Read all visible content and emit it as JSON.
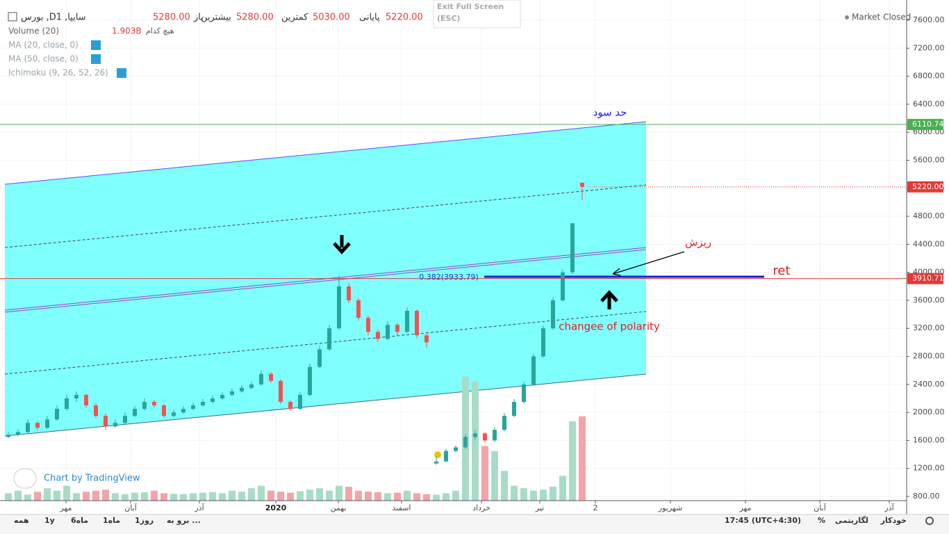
{
  "legend": {
    "symbol": "بورس ,Dسایپا, 1",
    "open_label": "باز",
    "open": "5280.00",
    "high_label": "بیشترین",
    "high": "5280.00",
    "low_label": "کمترین",
    "low": "5030.00",
    "close_label": "پایانی",
    "close": "5220.00",
    "volume_name": "Volume (20)",
    "volume_value": "1.903B",
    "volume_ma": "هیچ کدام",
    "indicators": [
      "MA (20, close, 0)",
      "MA (50, close, 0)",
      "Ichimoku (9, 26, 52, 26)"
    ]
  },
  "ui": {
    "exit_fullscreen": "Exit Full Screen",
    "exit_key": "(ESC)",
    "market_status": "Market Closed",
    "attribution": "Chart by TradingView",
    "toolbar_left": [
      "همه",
      "1y",
      "6ماه",
      "1ماه",
      "1روز",
      "برو به ..."
    ],
    "toolbar_right": [
      "17:45 (UTC+4:30)",
      "%",
      "لگاریتمی",
      "خودکار"
    ]
  },
  "chart_data": {
    "type": "candlestick",
    "up_color": "#26a69a",
    "down_color": "#ef5350",
    "volume_up_color": "#a8dcc6",
    "volume_down_color": "#f4a4a8",
    "ylim": [
      800,
      7600
    ],
    "yticks": [
      {
        "value": 800,
        "label": "800.00"
      },
      {
        "value": 1200,
        "label": "1200.00"
      },
      {
        "value": 1600,
        "label": "1600.00"
      },
      {
        "value": 2000,
        "label": "2000.00"
      },
      {
        "value": 2400,
        "label": "2400.00"
      },
      {
        "value": 2800,
        "label": "2800.00"
      },
      {
        "value": 3200,
        "label": "3200.00"
      },
      {
        "value": 3600,
        "label": "3600.00"
      },
      {
        "value": 4000,
        "label": "4000.00"
      },
      {
        "value": 4400,
        "label": "4400.00"
      },
      {
        "value": 4800,
        "label": "4800.00"
      },
      {
        "value": 5200,
        "label": "5200.00"
      },
      {
        "value": 5600,
        "label": "5600.00"
      },
      {
        "value": 6000,
        "label": "6000.00"
      },
      {
        "value": 6400,
        "label": "6400.00"
      },
      {
        "value": 6800,
        "label": "6800.00"
      },
      {
        "value": 7200,
        "label": "7200.00"
      },
      {
        "value": 7600,
        "label": "7600.00"
      }
    ],
    "xtick_labels": [
      "مهر",
      "آبان",
      "آذر",
      "2020",
      "بهمن",
      "اسفند",
      "خرداد",
      "تیر",
      "2",
      "شهریور",
      "مهر",
      "آبان",
      "آذر"
    ],
    "price_lines": [
      {
        "value": 6110.74,
        "color": "#4caf50"
      },
      {
        "value": 5220,
        "label": "5220.00",
        "color": "#e53935"
      },
      {
        "value": 3910.71,
        "color": "#e53935"
      }
    ],
    "annotations": [
      "حد سود",
      "ریزش",
      "ret",
      "changee of polarity",
      "0.382(3933.79)"
    ],
    "candles": [
      [
        1650,
        1720,
        1630,
        1680
      ],
      [
        1680,
        1760,
        1660,
        1720
      ],
      [
        1720,
        1900,
        1700,
        1850
      ],
      [
        1850,
        1880,
        1740,
        1780
      ],
      [
        1780,
        1950,
        1760,
        1900
      ],
      [
        1900,
        2100,
        1880,
        2050
      ],
      [
        2050,
        2250,
        2020,
        2200
      ],
      [
        2200,
        2300,
        2150,
        2250
      ],
      [
        2250,
        2270,
        2060,
        2100
      ],
      [
        2100,
        2130,
        1920,
        1950
      ],
      [
        1950,
        1980,
        1750,
        1800
      ],
      [
        1800,
        1900,
        1780,
        1850
      ],
      [
        1850,
        2000,
        1830,
        1950
      ],
      [
        1950,
        2090,
        1930,
        2050
      ],
      [
        2050,
        2200,
        2030,
        2150
      ],
      [
        2150,
        2180,
        2070,
        2100
      ],
      [
        2100,
        2120,
        1920,
        1950
      ],
      [
        1950,
        2040,
        1930,
        2000
      ],
      [
        2000,
        2090,
        1980,
        2050
      ],
      [
        2050,
        2140,
        2030,
        2100
      ],
      [
        2100,
        2190,
        2080,
        2150
      ],
      [
        2150,
        2240,
        2130,
        2200
      ],
      [
        2200,
        2290,
        2180,
        2250
      ],
      [
        2250,
        2340,
        2230,
        2300
      ],
      [
        2300,
        2390,
        2280,
        2350
      ],
      [
        2350,
        2440,
        2330,
        2400
      ],
      [
        2400,
        2600,
        2380,
        2550
      ],
      [
        2550,
        2580,
        2420,
        2450
      ],
      [
        2450,
        2470,
        2120,
        2150
      ],
      [
        2150,
        2170,
        2020,
        2050
      ],
      [
        2050,
        2290,
        2030,
        2250
      ],
      [
        2250,
        2700,
        2230,
        2650
      ],
      [
        2650,
        2950,
        2630,
        2900
      ],
      [
        2900,
        3250,
        2880,
        3200
      ],
      [
        3200,
        3950,
        3180,
        3800
      ],
      [
        3800,
        3850,
        3560,
        3600
      ],
      [
        3600,
        3630,
        3310,
        3350
      ],
      [
        3350,
        3380,
        3100,
        3150
      ],
      [
        3150,
        3180,
        3000,
        3050
      ],
      [
        3050,
        3300,
        3030,
        3250
      ],
      [
        3250,
        3280,
        3100,
        3150
      ],
      [
        3150,
        3500,
        3130,
        3450
      ],
      [
        3450,
        3470,
        3060,
        3100
      ],
      [
        3100,
        3150,
        2920,
        3000
      ],
      [
        1270,
        1380,
        1250,
        1300
      ],
      [
        1300,
        1480,
        1290,
        1450
      ],
      [
        1450,
        1530,
        1430,
        1500
      ],
      [
        1500,
        1690,
        1480,
        1650
      ],
      [
        1650,
        1750,
        1600,
        1700
      ],
      [
        1700,
        1720,
        1560,
        1600
      ],
      [
        1600,
        1790,
        1580,
        1750
      ],
      [
        1750,
        1990,
        1730,
        1950
      ],
      [
        1950,
        2190,
        1930,
        2150
      ],
      [
        2150,
        2440,
        2130,
        2400
      ],
      [
        2400,
        2840,
        2380,
        2800
      ],
      [
        2800,
        3240,
        2780,
        3200
      ],
      [
        3200,
        3640,
        3180,
        3600
      ],
      [
        3600,
        4040,
        3580,
        4000
      ],
      [
        4000,
        4700,
        3980,
        4700
      ],
      [
        5280,
        5280,
        5030,
        5220
      ]
    ],
    "volume_ylim": [
      0,
      3000
    ],
    "volumes": [
      150,
      200,
      120,
      180,
      250,
      200,
      300,
      150,
      180,
      200,
      220,
      150,
      130,
      160,
      170,
      200,
      150,
      140,
      130,
      150,
      160,
      170,
      150,
      200,
      180,
      250,
      300,
      200,
      180,
      160,
      190,
      220,
      250,
      200,
      300,
      280,
      200,
      180,
      170,
      150,
      160,
      200,
      150,
      130,
      120,
      150,
      200,
      2500,
      2400,
      1100,
      1000,
      600,
      300,
      250,
      200,
      220,
      280,
      500,
      1600,
      1700
    ]
  }
}
